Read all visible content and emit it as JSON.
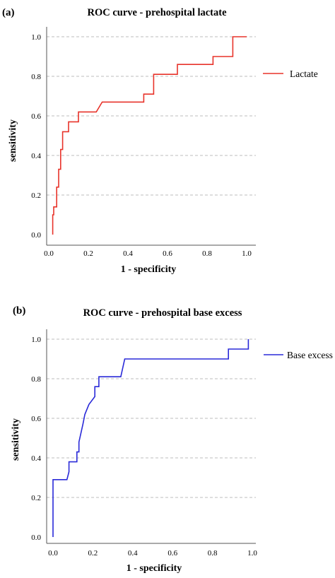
{
  "panels": [
    {
      "label": "(a)",
      "legend_label": "Lactate"
    },
    {
      "label": "(b)",
      "legend_label": "Base excess"
    }
  ],
  "chart_data": [
    {
      "type": "line",
      "title": "ROC curve - prehospital lactate",
      "xlabel": "1 - specificity",
      "ylabel": "sensitivity",
      "xlim": [
        0,
        1
      ],
      "ylim": [
        0,
        1
      ],
      "x_ticks": [
        "0.0",
        "0.2",
        "0.4",
        "0.6",
        "0.8",
        "1.0"
      ],
      "y_ticks": [
        "0.0",
        "0.2",
        "0.4",
        "0.6",
        "0.8",
        "1.0"
      ],
      "grid": "horizontal dashed",
      "legend_position": "top-right",
      "series": [
        {
          "name": "Lactate",
          "color": "#e8332a",
          "x": [
            0.02,
            0.02,
            0.025,
            0.025,
            0.04,
            0.04,
            0.05,
            0.05,
            0.06,
            0.06,
            0.07,
            0.07,
            0.1,
            0.1,
            0.15,
            0.15,
            0.16,
            0.16,
            0.24,
            0.27,
            0.48,
            0.48,
            0.53,
            0.53,
            0.65,
            0.65,
            0.83,
            0.83,
            0.93,
            0.93,
            1.0
          ],
          "y": [
            0.0,
            0.1,
            0.1,
            0.14,
            0.14,
            0.24,
            0.24,
            0.33,
            0.33,
            0.43,
            0.43,
            0.52,
            0.52,
            0.57,
            0.57,
            0.62,
            0.62,
            0.62,
            0.62,
            0.67,
            0.67,
            0.71,
            0.71,
            0.81,
            0.81,
            0.86,
            0.86,
            0.9,
            0.9,
            1.0,
            1.0
          ]
        }
      ]
    },
    {
      "type": "line",
      "title": "ROC curve - prehospital base excess",
      "xlabel": "1 - specificity",
      "ylabel": "sensitivity",
      "xlim": [
        0,
        1
      ],
      "ylim": [
        0,
        1
      ],
      "x_ticks": [
        "0.0",
        "0.2",
        "0.4",
        "0.6",
        "0.8",
        "1.0"
      ],
      "y_ticks": [
        "0.0",
        "0.2",
        "0.4",
        "0.6",
        "0.8",
        "1.0"
      ],
      "grid": "horizontal dashed",
      "legend_position": "top-right",
      "series": [
        {
          "name": "Base excess",
          "color": "#2a2ad8",
          "x": [
            0.0,
            0.0,
            0.07,
            0.08,
            0.08,
            0.12,
            0.12,
            0.13,
            0.13,
            0.15,
            0.16,
            0.16,
            0.18,
            0.18,
            0.21,
            0.21,
            0.23,
            0.23,
            0.25,
            0.34,
            0.36,
            0.88,
            0.88,
            0.98,
            0.98
          ],
          "y": [
            0.0,
            0.29,
            0.29,
            0.33,
            0.38,
            0.38,
            0.43,
            0.43,
            0.48,
            0.57,
            0.62,
            0.62,
            0.67,
            0.67,
            0.71,
            0.76,
            0.76,
            0.81,
            0.81,
            0.81,
            0.9,
            0.9,
            0.95,
            0.95,
            1.0
          ]
        }
      ]
    }
  ]
}
